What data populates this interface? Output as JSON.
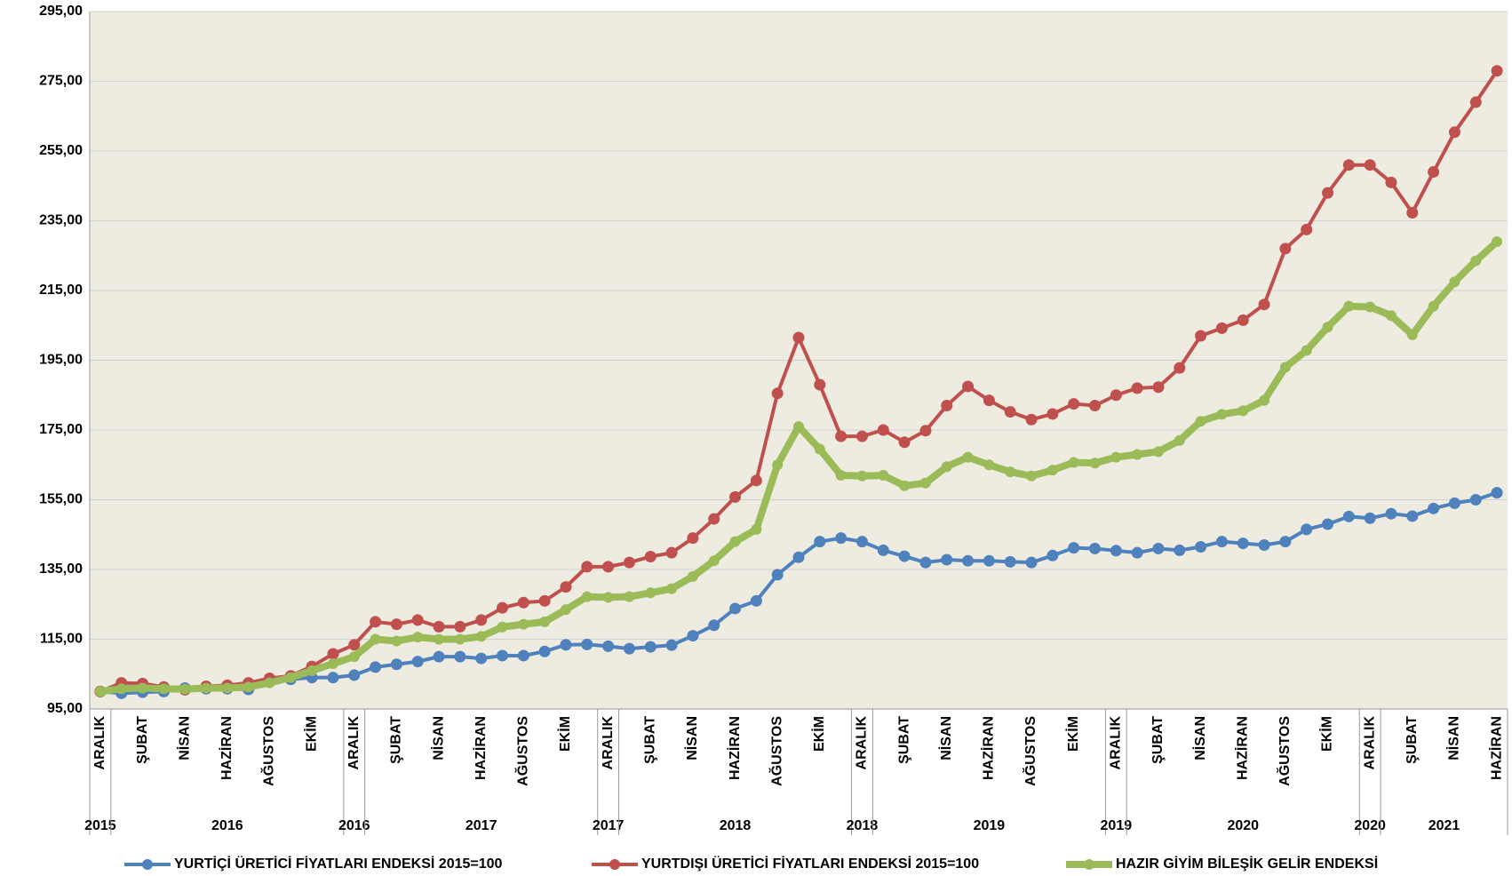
{
  "chart_data": {
    "type": "line",
    "categories": [
      "ARALIK",
      null,
      "ŞUBAT",
      null,
      "NİSAN",
      null,
      "HAZİRAN",
      null,
      "AĞUSTOS",
      null,
      "EKİM",
      null,
      "ARALIK",
      null,
      "ŞUBAT",
      null,
      "NİSAN",
      null,
      "HAZİRAN",
      null,
      "AĞUSTOS",
      null,
      "EKİM",
      null,
      "ARALIK",
      null,
      "ŞUBAT",
      null,
      "NİSAN",
      null,
      "HAZİRAN",
      null,
      "AĞUSTOS",
      null,
      "EKİM",
      null,
      "ARALIK",
      null,
      "ŞUBAT",
      null,
      "NİSAN",
      null,
      "HAZİRAN",
      null,
      "AĞUSTOS",
      null,
      "EKİM",
      null,
      "ARALIK",
      null,
      "ŞUBAT",
      null,
      "NİSAN",
      null,
      "HAZİRAN",
      null,
      "AĞUSTOS",
      null,
      "EKİM",
      null,
      "ARALIK",
      null,
      "ŞUBAT",
      null,
      "NİSAN",
      null,
      "HAZİRAN"
    ],
    "year_groups": [
      {
        "label": "2015",
        "size": 1
      },
      {
        "label": "2016",
        "size": 11
      },
      {
        "label": "2016",
        "size": 1
      },
      {
        "label": "2017",
        "size": 11
      },
      {
        "label": "2017",
        "size": 1
      },
      {
        "label": "2018",
        "size": 11
      },
      {
        "label": "2018",
        "size": 1
      },
      {
        "label": "2019",
        "size": 11
      },
      {
        "label": "2019",
        "size": 1
      },
      {
        "label": "2020",
        "size": 11
      },
      {
        "label": "2020",
        "size": 1
      },
      {
        "label": "2021",
        "size": 6
      }
    ],
    "series": [
      {
        "name": "YURTİÇİ ÜRETİCİ FİYATLARI ENDEKSİ 2015=100",
        "color": "#4f81bd",
        "values": [
          100,
          99.5,
          99.8,
          100,
          101,
          100.8,
          100.8,
          100.6,
          102.8,
          103.5,
          104,
          104,
          104.7,
          107,
          107.8,
          108.6,
          110,
          110,
          109.5,
          110.3,
          110.3,
          111.5,
          113.4,
          113.5,
          113,
          112.3,
          112.8,
          113.3,
          116,
          119,
          123.8,
          126,
          133.5,
          138.5,
          143,
          144,
          143,
          140.5,
          138.8,
          137,
          137.8,
          137.5,
          137.5,
          137.2,
          137,
          139,
          141.2,
          141,
          140.4,
          139.8,
          141,
          140.5,
          141.5,
          143,
          142.5,
          142,
          143,
          146.5,
          148,
          150.2,
          149.7,
          151,
          150.3,
          152.5,
          154,
          155,
          157
        ]
      },
      {
        "name": "YURTDIŞI ÜRETİCİ FİYATLARI ENDEKSİ 2015=100",
        "color": "#c0504d",
        "values": [
          100,
          102.5,
          102.3,
          101.3,
          100.5,
          101.5,
          101.8,
          102.5,
          103.8,
          104.5,
          107.2,
          110.8,
          113.4,
          120,
          119.3,
          120.5,
          118.6,
          118.6,
          120.5,
          124,
          125.5,
          126,
          130,
          135.8,
          135.8,
          137,
          138.7,
          139.8,
          144,
          149.5,
          155.8,
          160.5,
          185.5,
          201.5,
          188,
          173.2,
          173.2,
          175,
          171.5,
          174.8,
          182,
          187.5,
          183.5,
          180.2,
          178,
          179.6,
          182.5,
          182,
          185,
          187,
          187.3,
          192.8,
          202,
          204.2,
          206.5,
          211,
          227,
          232.5,
          243,
          251,
          251,
          246,
          237.3,
          249,
          260.4,
          269,
          278
        ]
      },
      {
        "name": "HAZIR GİYİM BİLEŞİK GELİR ENDEKSİ",
        "color": "#9bbb59",
        "values": [
          100,
          100.8,
          101,
          100.8,
          100.7,
          101,
          101,
          101.3,
          102.5,
          104,
          106,
          108,
          110,
          115,
          114.5,
          115.6,
          115,
          115,
          115.8,
          118.5,
          119.3,
          120,
          123.5,
          127.2,
          127,
          127.2,
          128.3,
          129.5,
          133,
          137.5,
          143,
          146.5,
          165,
          176,
          169.5,
          162,
          161.8,
          162,
          159,
          159.8,
          164.5,
          167.2,
          165,
          163,
          161.8,
          163.5,
          165.7,
          165.5,
          167.2,
          168,
          168.8,
          172,
          177.5,
          179.5,
          180.5,
          183.5,
          193,
          197.8,
          204.5,
          210.5,
          210.3,
          207.8,
          202.3,
          210.5,
          217.5,
          223.5,
          229
        ]
      }
    ],
    "ylim": [
      95,
      295
    ],
    "yticks": [
      {
        "value": 95,
        "label": "95,00"
      },
      {
        "value": 115,
        "label": "115,00"
      },
      {
        "value": 135,
        "label": "135,00"
      },
      {
        "value": 155,
        "label": "155,00"
      },
      {
        "value": 175,
        "label": "175,00"
      },
      {
        "value": 195,
        "label": "195,00"
      },
      {
        "value": 215,
        "label": "215,00"
      },
      {
        "value": 235,
        "label": "235,00"
      },
      {
        "value": 255,
        "label": "255,00"
      },
      {
        "value": 275,
        "label": "275,00"
      },
      {
        "value": 295,
        "label": "295,00"
      }
    ],
    "grid": true
  }
}
